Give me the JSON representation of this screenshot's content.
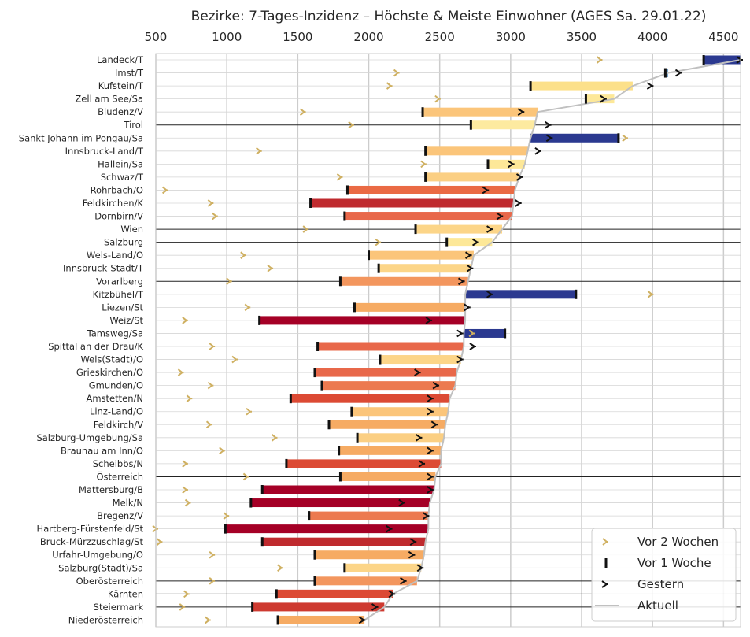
{
  "chart_data": {
    "type": "bar",
    "title": "Bezirke: 7-Tages-Inzidenz – Höchste & Meiste Einwohner (AGES Sa. 29.01.22)",
    "xlim": [
      500,
      4620
    ],
    "xticks": [
      500,
      1000,
      1500,
      2000,
      2500,
      3000,
      3500,
      4000,
      4500
    ],
    "x_axis_position": "top",
    "grid": true,
    "legend_position": "bottom-right",
    "legend": [
      {
        "key": "two_weeks",
        "label": "Vor 2 Wochen"
      },
      {
        "key": "one_week",
        "label": "Vor 1 Woche"
      },
      {
        "key": "yesterday",
        "label": "Gestern"
      },
      {
        "key": "current",
        "label": "Aktuell"
      }
    ],
    "colors": {
      "two_weeks": "#cfb061",
      "one_week": "#111111",
      "yesterday": "#111111",
      "current": "#c0c0c0",
      "grid": "#cccccc",
      "region_line": "#222222"
    },
    "rows": [
      {
        "name": "Landeck/T",
        "current": 4620,
        "one_week": 4360,
        "yesterday": 4620,
        "two_weeks": 3630,
        "color": "#2b3990",
        "region": false
      },
      {
        "name": "Imst/T",
        "current": 4110,
        "one_week": 4090,
        "yesterday": 4190,
        "two_weeks": 2200,
        "color": "#7ba7cc",
        "region": false
      },
      {
        "name": "Kufstein/T",
        "current": 3860,
        "one_week": 3140,
        "yesterday": 3990,
        "two_weeks": 2150,
        "color": "#fce08a",
        "region": false
      },
      {
        "name": "Zell am See/Sa",
        "current": 3730,
        "one_week": 3530,
        "yesterday": 3660,
        "two_weeks": 2490,
        "color": "#fde898",
        "region": false
      },
      {
        "name": "Bludenz/V",
        "current": 3190,
        "one_week": 2380,
        "yesterday": 3080,
        "two_weeks": 1540,
        "color": "#fbc57a",
        "region": false
      },
      {
        "name": "Tirol",
        "current": 3170,
        "one_week": 2720,
        "yesterday": 3270,
        "two_weeks": 1880,
        "color": "#fdeaa0",
        "region": true
      },
      {
        "name": "Sankt Johann im Pongau/Sa",
        "current": 3140,
        "one_week": 3760,
        "yesterday": 3280,
        "two_weeks": 3810,
        "color": "#2b3990",
        "region": false
      },
      {
        "name": "Innsbruck-Land/T",
        "current": 3120,
        "one_week": 2400,
        "yesterday": 3200,
        "two_weeks": 1230,
        "color": "#fbc57a",
        "region": false
      },
      {
        "name": "Hallein/Sa",
        "current": 3100,
        "one_week": 2840,
        "yesterday": 3010,
        "two_weeks": 2390,
        "color": "#fde898",
        "region": false
      },
      {
        "name": "Schwaz/T",
        "current": 3060,
        "one_week": 2400,
        "yesterday": 3070,
        "two_weeks": 1800,
        "color": "#fbcf83",
        "region": false
      },
      {
        "name": "Rohrbach/O",
        "current": 3030,
        "one_week": 1850,
        "yesterday": 2830,
        "two_weeks": 570,
        "color": "#ea6a44",
        "region": false
      },
      {
        "name": "Feldkirchen/K",
        "current": 3020,
        "one_week": 1590,
        "yesterday": 3060,
        "two_weeks": 890,
        "color": "#bf2a2e",
        "region": false
      },
      {
        "name": "Dornbirn/V",
        "current": 3010,
        "one_week": 1830,
        "yesterday": 2930,
        "two_weeks": 920,
        "color": "#e8684a",
        "region": false
      },
      {
        "name": "Wien",
        "current": 2940,
        "one_week": 2330,
        "yesterday": 2860,
        "two_weeks": 1560,
        "color": "#fcd588",
        "region": true
      },
      {
        "name": "Salzburg",
        "current": 2870,
        "one_week": 2550,
        "yesterday": 2760,
        "two_weeks": 2070,
        "color": "#fde898",
        "region": true
      },
      {
        "name": "Wels-Land/O",
        "current": 2740,
        "one_week": 2000,
        "yesterday": 2710,
        "two_weeks": 1120,
        "color": "#fbc57a",
        "region": false
      },
      {
        "name": "Innsbruck-Stadt/T",
        "current": 2720,
        "one_week": 2070,
        "yesterday": 2720,
        "two_weeks": 1310,
        "color": "#fcd588",
        "region": false
      },
      {
        "name": "Vorarlberg",
        "current": 2700,
        "one_week": 1800,
        "yesterday": 2660,
        "two_weeks": 1020,
        "color": "#f3965e",
        "region": true
      },
      {
        "name": "Kitzbühel/T",
        "current": 2680,
        "one_week": 3460,
        "yesterday": 2860,
        "two_weeks": 3990,
        "color": "#2b3990",
        "region": false
      },
      {
        "name": "Liezen/St",
        "current": 2680,
        "one_week": 1900,
        "yesterday": 2700,
        "two_weeks": 1150,
        "color": "#f6ab63",
        "region": false
      },
      {
        "name": "Weiz/St",
        "current": 2680,
        "one_week": 1230,
        "yesterday": 2430,
        "two_weeks": 710,
        "color": "#a50026",
        "region": false
      },
      {
        "name": "Tamsweg/Sa",
        "current": 2670,
        "one_week": 2960,
        "yesterday": 2650,
        "two_weeks": 2730,
        "color": "#2b3990",
        "region": false
      },
      {
        "name": "Spittal an der Drau/K",
        "current": 2670,
        "one_week": 1640,
        "yesterday": 2740,
        "two_weeks": 900,
        "color": "#e8684a",
        "region": false
      },
      {
        "name": "Wels(Stadt)/O",
        "current": 2650,
        "one_week": 2080,
        "yesterday": 2650,
        "two_weeks": 1060,
        "color": "#fcd588",
        "region": false
      },
      {
        "name": "Grieskirchen/O",
        "current": 2620,
        "one_week": 1620,
        "yesterday": 2350,
        "two_weeks": 680,
        "color": "#e8684a",
        "region": false
      },
      {
        "name": "Gmunden/O",
        "current": 2610,
        "one_week": 1670,
        "yesterday": 2480,
        "two_weeks": 890,
        "color": "#ec7a50",
        "region": false
      },
      {
        "name": "Amstetten/N",
        "current": 2570,
        "one_week": 1450,
        "yesterday": 2440,
        "two_weeks": 740,
        "color": "#dc4a34",
        "region": false
      },
      {
        "name": "Linz-Land/O",
        "current": 2560,
        "one_week": 1880,
        "yesterday": 2440,
        "two_weeks": 1160,
        "color": "#fbc57a",
        "region": false
      },
      {
        "name": "Feldkirch/V",
        "current": 2540,
        "one_week": 1720,
        "yesterday": 2470,
        "two_weeks": 880,
        "color": "#f6ab63",
        "region": false
      },
      {
        "name": "Salzburg-Umgebung/Sa",
        "current": 2530,
        "one_week": 1920,
        "yesterday": 2360,
        "two_weeks": 1340,
        "color": "#fbcf83",
        "region": false
      },
      {
        "name": "Braunau am Inn/O",
        "current": 2510,
        "one_week": 1790,
        "yesterday": 2440,
        "two_weeks": 970,
        "color": "#f6ab63",
        "region": false
      },
      {
        "name": "Scheibbs/N",
        "current": 2510,
        "one_week": 1420,
        "yesterday": 2380,
        "two_weeks": 710,
        "color": "#dc4a34",
        "region": false
      },
      {
        "name": "Österreich",
        "current": 2470,
        "one_week": 1800,
        "yesterday": 2440,
        "two_weeks": 1140,
        "color": "#f6ab63",
        "region": true
      },
      {
        "name": "Mattersburg/B",
        "current": 2460,
        "one_week": 1250,
        "yesterday": 2440,
        "two_weeks": 710,
        "color": "#a50026",
        "region": false
      },
      {
        "name": "Melk/N",
        "current": 2430,
        "one_week": 1170,
        "yesterday": 2240,
        "two_weeks": 730,
        "color": "#a50026",
        "region": false
      },
      {
        "name": "Bregenz/V",
        "current": 2420,
        "one_week": 1580,
        "yesterday": 2410,
        "two_weeks": 1000,
        "color": "#ec7a50",
        "region": false
      },
      {
        "name": "Hartberg-Fürstenfeld/St",
        "current": 2420,
        "one_week": 990,
        "yesterday": 2150,
        "two_weeks": 500,
        "color": "#a50026",
        "region": false
      },
      {
        "name": "Bruck-Mürzzuschlag/St",
        "current": 2400,
        "one_week": 1250,
        "yesterday": 2320,
        "two_weeks": 530,
        "color": "#bf2a2e",
        "region": false
      },
      {
        "name": "Urfahr-Umgebung/O",
        "current": 2390,
        "one_week": 1620,
        "yesterday": 2310,
        "two_weeks": 900,
        "color": "#f6ab63",
        "region": false
      },
      {
        "name": "Salzburg(Stadt)/Sa",
        "current": 2370,
        "one_week": 1830,
        "yesterday": 2370,
        "two_weeks": 1380,
        "color": "#fcd588",
        "region": false
      },
      {
        "name": "Oberösterreich",
        "current": 2340,
        "one_week": 1620,
        "yesterday": 2250,
        "two_weeks": 900,
        "color": "#f3965e",
        "region": true
      },
      {
        "name": "Kärnten",
        "current": 2170,
        "one_week": 1350,
        "yesterday": 2170,
        "two_weeks": 720,
        "color": "#dc4a34",
        "region": true
      },
      {
        "name": "Steiermark",
        "current": 2110,
        "one_week": 1180,
        "yesterday": 2050,
        "two_weeks": 690,
        "color": "#ce3a30",
        "region": true
      },
      {
        "name": "Niederösterreich",
        "current": 1970,
        "one_week": 1360,
        "yesterday": 1960,
        "two_weeks": 870,
        "color": "#f6ab63",
        "region": true
      }
    ]
  }
}
